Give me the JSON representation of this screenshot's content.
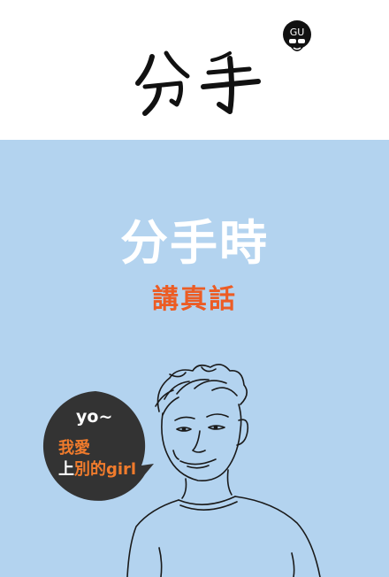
{
  "header": {
    "brush_title": "分手",
    "logo_text": "GU"
  },
  "poster": {
    "headline": "分手時",
    "subheadline": "講真話"
  },
  "speech_bubble": {
    "greeting": "yo~",
    "line1": "我愛",
    "line2_start": "上",
    "line2_end": "別的girl"
  },
  "colors": {
    "background_top": "#ffffff",
    "background_bottom": "#b3d3ef",
    "headline": "#ffffff",
    "accent": "#ec5c24",
    "bubble": "#333333"
  },
  "icons": {
    "logo": "afro-face-logo-icon",
    "title_art": "brush-calligraphy-title",
    "illustration": "man-line-drawing"
  }
}
